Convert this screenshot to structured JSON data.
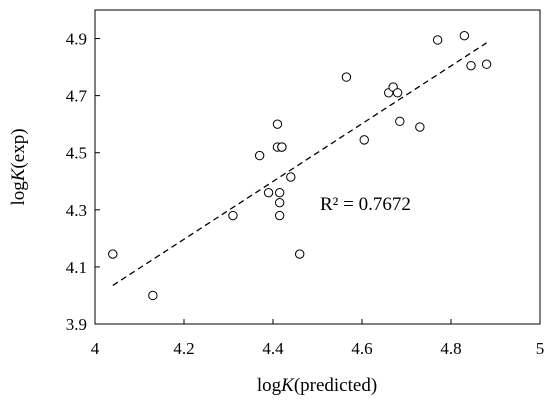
{
  "chart_data": {
    "type": "scatter",
    "title": "",
    "xlabel_prefix": "log",
    "xlabel_italic": "K",
    "xlabel_suffix": "(predicted)",
    "ylabel_prefix": "log",
    "ylabel_italic": "K",
    "ylabel_suffix": "(exp)",
    "xlim": [
      4,
      5
    ],
    "ylim": [
      3.9,
      5.0
    ],
    "x_ticks": [
      4,
      4.2,
      4.4,
      4.6,
      4.8,
      5
    ],
    "x_tick_labels": [
      "4",
      "4.2",
      "4.4",
      "4.6",
      "4.8",
      "5"
    ],
    "y_ticks": [
      3.9,
      4.1,
      4.3,
      4.5,
      4.7,
      4.9
    ],
    "y_tick_labels": [
      "3.9",
      "4.1",
      "4.3",
      "4.5",
      "4.7",
      "4.9"
    ],
    "grid": false,
    "marker": "open-circle",
    "series": [
      {
        "x": [
          4.04,
          4.13,
          4.31,
          4.37,
          4.39,
          4.41,
          4.41,
          4.415,
          4.415,
          4.415,
          4.42,
          4.42,
          4.44,
          4.46,
          4.565,
          4.605,
          4.66,
          4.67,
          4.68,
          4.685,
          4.73,
          4.77,
          4.83,
          4.845,
          4.88
        ],
        "y": [
          4.145,
          4.0,
          4.28,
          4.49,
          4.36,
          4.6,
          4.52,
          4.36,
          4.325,
          4.28,
          4.52,
          4.52,
          4.415,
          4.145,
          4.765,
          4.545,
          4.71,
          4.73,
          4.71,
          4.61,
          4.59,
          4.895,
          4.91,
          4.805,
          4.81
        ]
      }
    ],
    "trendline": {
      "style": "dashed",
      "x": [
        4.04,
        4.88
      ],
      "y": [
        4.035,
        4.885
      ]
    },
    "annotation": "R² = 0.7672"
  }
}
